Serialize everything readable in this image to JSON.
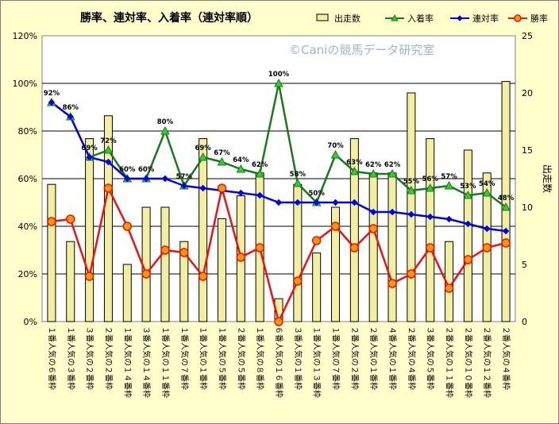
{
  "chart_data": {
    "type": "bar",
    "title": "勝率、連対率、入着率（連対率順）",
    "watermark": "©Caniの競馬データ研究室",
    "categories": [
      "１番人気の６番枠",
      "１番人気の３番枠",
      "３番人気の２番枠",
      "２番人気の２番枠",
      "１番人気の１４番枠",
      "３番人気の１４番枠",
      "１番人気の１１番枠",
      "１番人気の７番枠",
      "１番人気の１番枠",
      "１番人気の５番枠",
      "２番人気の５番枠",
      "１番人気の８番枠",
      "６番人気の１６番枠",
      "３番人気の１番枠",
      "１番人気の１３番枠",
      "１番人気の７番枠",
      "２番人気の２番枠",
      "２番人気の１番枠",
      "４番人気の１番枠",
      "２番人気の４番枠",
      "３番人気の５番枠",
      "２番人気の１１番枠",
      "２番人気の１０番枠",
      "２番人気の１２番枠",
      "２番人気の４番枠"
    ],
    "series": [
      {
        "name": "出走数",
        "type": "bar",
        "axis": "right",
        "color": "#f2f0a0",
        "values": [
          12,
          7,
          16,
          18,
          5,
          10,
          10,
          7,
          16,
          9,
          11,
          13,
          2,
          12,
          6,
          10,
          16,
          13,
          13,
          20,
          16,
          7,
          15,
          13,
          21
        ]
      },
      {
        "name": "入着率",
        "type": "line",
        "axis": "left",
        "color": "#1a7a1a",
        "marker": "triangle",
        "values": [
          92,
          86,
          69,
          72,
          60,
          60,
          80,
          57,
          69,
          67,
          64,
          62,
          100,
          58,
          50,
          70,
          63,
          62,
          62,
          55,
          56,
          57,
          53,
          54,
          48
        ],
        "labels": [
          "92%",
          "86%",
          "69%",
          "72%",
          "60%",
          "60%",
          "80%",
          "57%",
          "69%",
          "67%",
          "64%",
          "62%",
          "100%",
          "58%",
          "50%",
          "70%",
          "63%",
          "62%",
          "62%",
          "55%",
          "56%",
          "57%",
          "53%",
          "54%",
          "48%"
        ]
      },
      {
        "name": "連対率",
        "type": "line",
        "axis": "left",
        "color": "#0000ee",
        "marker": "diamond",
        "values": [
          92,
          86,
          69,
          67,
          60,
          60,
          60,
          57,
          56,
          55,
          54,
          53,
          50,
          50,
          50,
          50,
          50,
          46,
          46,
          45,
          44,
          43,
          41,
          39,
          38
        ]
      },
      {
        "name": "勝率",
        "type": "line",
        "axis": "left",
        "color": "#ee1111",
        "marker": "circle",
        "values": [
          42,
          43,
          19,
          56,
          40,
          20,
          30,
          29,
          19,
          56,
          27,
          31,
          0,
          17,
          34,
          40,
          31,
          39,
          16,
          20,
          31,
          14,
          26,
          31,
          33
        ]
      }
    ],
    "y_left": {
      "min": 0,
      "max": 120,
      "step": 20,
      "ticks": [
        "0%",
        "20%",
        "40%",
        "60%",
        "80%",
        "100%",
        "120%"
      ]
    },
    "y_right": {
      "label": "出走数",
      "min": 0,
      "max": 25,
      "step": 5,
      "ticks": [
        "0",
        "5",
        "10",
        "15",
        "20",
        "25"
      ]
    },
    "grid": true,
    "legend_position": "top-right"
  }
}
